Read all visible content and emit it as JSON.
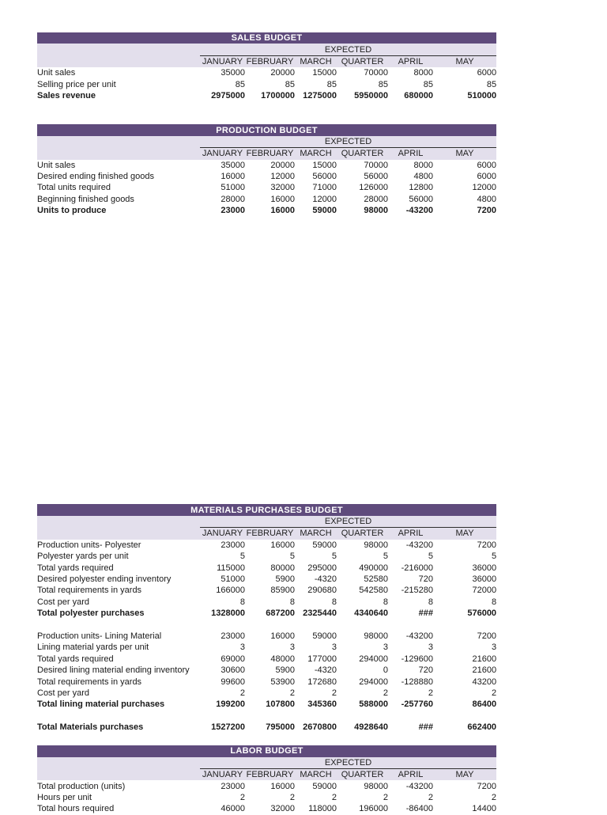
{
  "theme": {
    "banner_bg": "#5F4B7C",
    "banner_text": "#FFFFFF",
    "subheader_bg": "#E3DFEC",
    "body_text": "#1A1A1A"
  },
  "expected_label": "EXPECTED",
  "columns": [
    "JANUARY",
    "FEBRUARY",
    "MARCH",
    "QUARTER",
    "APRIL",
    "MAY"
  ],
  "tables": [
    {
      "title": "SALES BUDGET",
      "slug": "sales-budget",
      "rows": [
        {
          "label": "Unit sales",
          "values": [
            "35000",
            "20000",
            "15000",
            "70000",
            "8000",
            "6000"
          ],
          "bold": false
        },
        {
          "label": "Selling price per unit",
          "values": [
            "85",
            "85",
            "85",
            "85",
            "85",
            "85"
          ],
          "bold": false
        },
        {
          "label": "Sales revenue",
          "values": [
            "2975000",
            "1700000",
            "1275000",
            "5950000",
            "680000",
            "510000"
          ],
          "bold": true
        }
      ]
    },
    {
      "title": "PRODUCTION BUDGET",
      "slug": "production-budget",
      "rows": [
        {
          "label": "Unit sales",
          "values": [
            "35000",
            "20000",
            "15000",
            "70000",
            "8000",
            "6000"
          ],
          "bold": false
        },
        {
          "label": "Desired ending finished goods",
          "values": [
            "16000",
            "12000",
            "56000",
            "56000",
            "4800",
            "6000"
          ],
          "bold": false
        },
        {
          "label": "Total units required",
          "values": [
            "51000",
            "32000",
            "71000",
            "126000",
            "12800",
            "12000"
          ],
          "bold": false
        },
        {
          "label": "Beginning finished goods",
          "values": [
            "28000",
            "16000",
            "12000",
            "28000",
            "56000",
            "4800"
          ],
          "bold": false
        },
        {
          "label": "Units to produce",
          "values": [
            "23000",
            "16000",
            "59000",
            "98000",
            "-43200",
            "7200"
          ],
          "bold": true
        }
      ]
    },
    {
      "title": "MATERIALS PURCHASES BUDGET",
      "slug": "materials-purchases-budget",
      "rows": [
        {
          "label": "Production units- Polyester",
          "values": [
            "23000",
            "16000",
            "59000",
            "98000",
            "-43200",
            "7200"
          ],
          "bold": false
        },
        {
          "label": "Polyester yards per unit",
          "values": [
            "5",
            "5",
            "5",
            "5",
            "5",
            "5"
          ],
          "bold": false
        },
        {
          "label": "Total yards required",
          "values": [
            "115000",
            "80000",
            "295000",
            "490000",
            "-216000",
            "36000"
          ],
          "bold": false
        },
        {
          "label": "Desired polyester ending inventory",
          "values": [
            "51000",
            "5900",
            "-4320",
            "52580",
            "720",
            "36000"
          ],
          "bold": false
        },
        {
          "label": "Total requirements in yards",
          "values": [
            "166000",
            "85900",
            "290680",
            "542580",
            "-215280",
            "72000"
          ],
          "bold": false
        },
        {
          "label": "Cost per yard",
          "values": [
            "8",
            "8",
            "8",
            "8",
            "8",
            "8"
          ],
          "bold": false
        },
        {
          "label": "Total polyester purchases",
          "values": [
            "1328000",
            "687200",
            "2325440",
            "4340640",
            "###",
            "576000"
          ],
          "bold": true
        },
        {
          "spacer": true
        },
        {
          "label": "Production units- Lining Material",
          "values": [
            "23000",
            "16000",
            "59000",
            "98000",
            "-43200",
            "7200"
          ],
          "bold": false
        },
        {
          "label": "Lining material yards per unit",
          "values": [
            "3",
            "3",
            "3",
            "3",
            "3",
            "3"
          ],
          "bold": false
        },
        {
          "label": "Total yards required",
          "values": [
            "69000",
            "48000",
            "177000",
            "294000",
            "-129600",
            "21600"
          ],
          "bold": false
        },
        {
          "label": "Desired lining material ending inventory",
          "values": [
            "30600",
            "5900",
            "-4320",
            "0",
            "720",
            "21600"
          ],
          "bold": false
        },
        {
          "label": "Total requirements in yards",
          "values": [
            "99600",
            "53900",
            "172680",
            "294000",
            "-128880",
            "43200"
          ],
          "bold": false
        },
        {
          "label": "Cost per yard",
          "values": [
            "2",
            "2",
            "2",
            "2",
            "2",
            "2"
          ],
          "bold": false
        },
        {
          "label": "Total lining material purchases",
          "values": [
            "199200",
            "107800",
            "345360",
            "588000",
            "-257760",
            "86400"
          ],
          "bold": true
        },
        {
          "spacer": true
        },
        {
          "label": "Total Materials purchases",
          "values": [
            "1527200",
            "795000",
            "2670800",
            "4928640",
            "###",
            "662400"
          ],
          "bold": true
        }
      ]
    },
    {
      "title": "LABOR BUDGET",
      "slug": "labor-budget",
      "rows": [
        {
          "label": "Total production (units)",
          "values": [
            "23000",
            "16000",
            "59000",
            "98000",
            "-43200",
            "7200"
          ],
          "bold": false
        },
        {
          "label": "Hours per unit",
          "values": [
            "2",
            "2",
            "2",
            "2",
            "2",
            "2"
          ],
          "bold": false
        },
        {
          "label": "Total hours required",
          "values": [
            "46000",
            "32000",
            "118000",
            "196000",
            "-86400",
            "14400"
          ],
          "bold": false
        }
      ]
    }
  ]
}
